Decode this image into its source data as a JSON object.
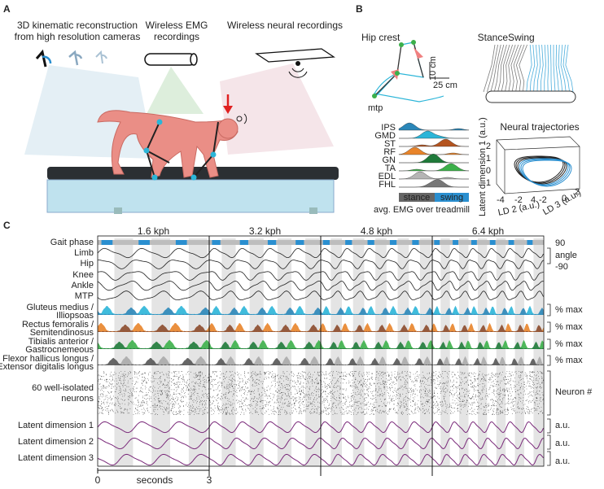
{
  "panel_a": {
    "label": "A",
    "cameras_title": [
      "3D kinematic reconstruction",
      "from high resolution cameras"
    ],
    "emg_title": [
      "Wireless EMG",
      "recordings"
    ],
    "neural_title": "Wireless neural recordings"
  },
  "panel_b": {
    "label": "B",
    "hip_crest": "Hip crest",
    "mtp": "mtp",
    "scale_vertical": "10 cm",
    "scale_horizontal": "25 cm",
    "stance": "Stance",
    "swing": "Swing",
    "muscles": [
      {
        "name": "IPS",
        "color": "#2a86b8"
      },
      {
        "name": "GMD",
        "color": "#2bb5d8"
      },
      {
        "name": "ST",
        "color": "#b4541f"
      },
      {
        "name": "RF",
        "color": "#e8842a"
      },
      {
        "name": "GN",
        "color": "#1f7a3a"
      },
      {
        "name": "TA",
        "color": "#3cb04a"
      },
      {
        "name": "EDL",
        "color": "#b5b5b5"
      },
      {
        "name": "FHL",
        "color": "#777777"
      }
    ],
    "phase_stance": "stance",
    "phase_swing": "swing",
    "emg_caption": "avg. EMG over treadmill",
    "trajectories_title": "Neural trajectories",
    "z_label": "Latent dimension 1 (a.u.)",
    "z_ticks": [
      "2",
      "1",
      "0",
      "-1"
    ],
    "ld2_label": "LD 2 (a.u.)",
    "ld2_ticks": [
      "-4",
      "-2",
      "4"
    ],
    "ld3_label": "LD 3 (a.u.)",
    "ld3_ticks": [
      "-2",
      "0",
      "2"
    ]
  },
  "panel_c": {
    "label": "C",
    "speeds": [
      "1.6 kph",
      "3.2 kph",
      "4.8 kph",
      "6.4 kph"
    ],
    "rows": [
      {
        "text": "Gait phase",
        "color": "#222222"
      },
      {
        "text": "Limb",
        "color": "#222222"
      },
      {
        "text": "Hip",
        "color": "#222222"
      },
      {
        "text": "Knee",
        "color": "#222222"
      },
      {
        "text": "Ankle",
        "color": "#222222"
      },
      {
        "text": "MTP",
        "color": "#222222"
      },
      {
        "text": "Gluteus medius /",
        "color": "#2bb5d8"
      },
      {
        "text": "Illiopsoas",
        "color": "#2a86b8"
      },
      {
        "text": "Rectus femoralis /",
        "color": "#e8842a"
      },
      {
        "text": "Semitendinosus",
        "color": "#8b4a2b"
      },
      {
        "text": "Tibialis anterior /",
        "color": "#3cb04a"
      },
      {
        "text": "Gastrocnemeous",
        "color": "#1f7a3a"
      },
      {
        "text": "Flexor hallicus longus /",
        "color": "#aaaaaa"
      },
      {
        "text": "Extensor digitalis longus",
        "color": "#555555"
      },
      {
        "text": "60 well-isolated",
        "color": "#222222"
      },
      {
        "text": "neurons",
        "color": "#222222"
      },
      {
        "text": "Latent dimension 1",
        "color": "#222222"
      },
      {
        "text": "Latent dimension 2",
        "color": "#222222"
      },
      {
        "text": "Latent dimension 3",
        "color": "#222222"
      }
    ],
    "angle_top": "90",
    "angle_label": "angle",
    "angle_bottom": "-90",
    "emg_units": [
      "% max",
      "% max",
      "% max",
      "% max"
    ],
    "neuron_units": "Neuron #",
    "latent_units": [
      "a.u.",
      "a.u.",
      "a.u."
    ],
    "time_start": "0",
    "time_label": "seconds",
    "time_end": "3"
  }
}
